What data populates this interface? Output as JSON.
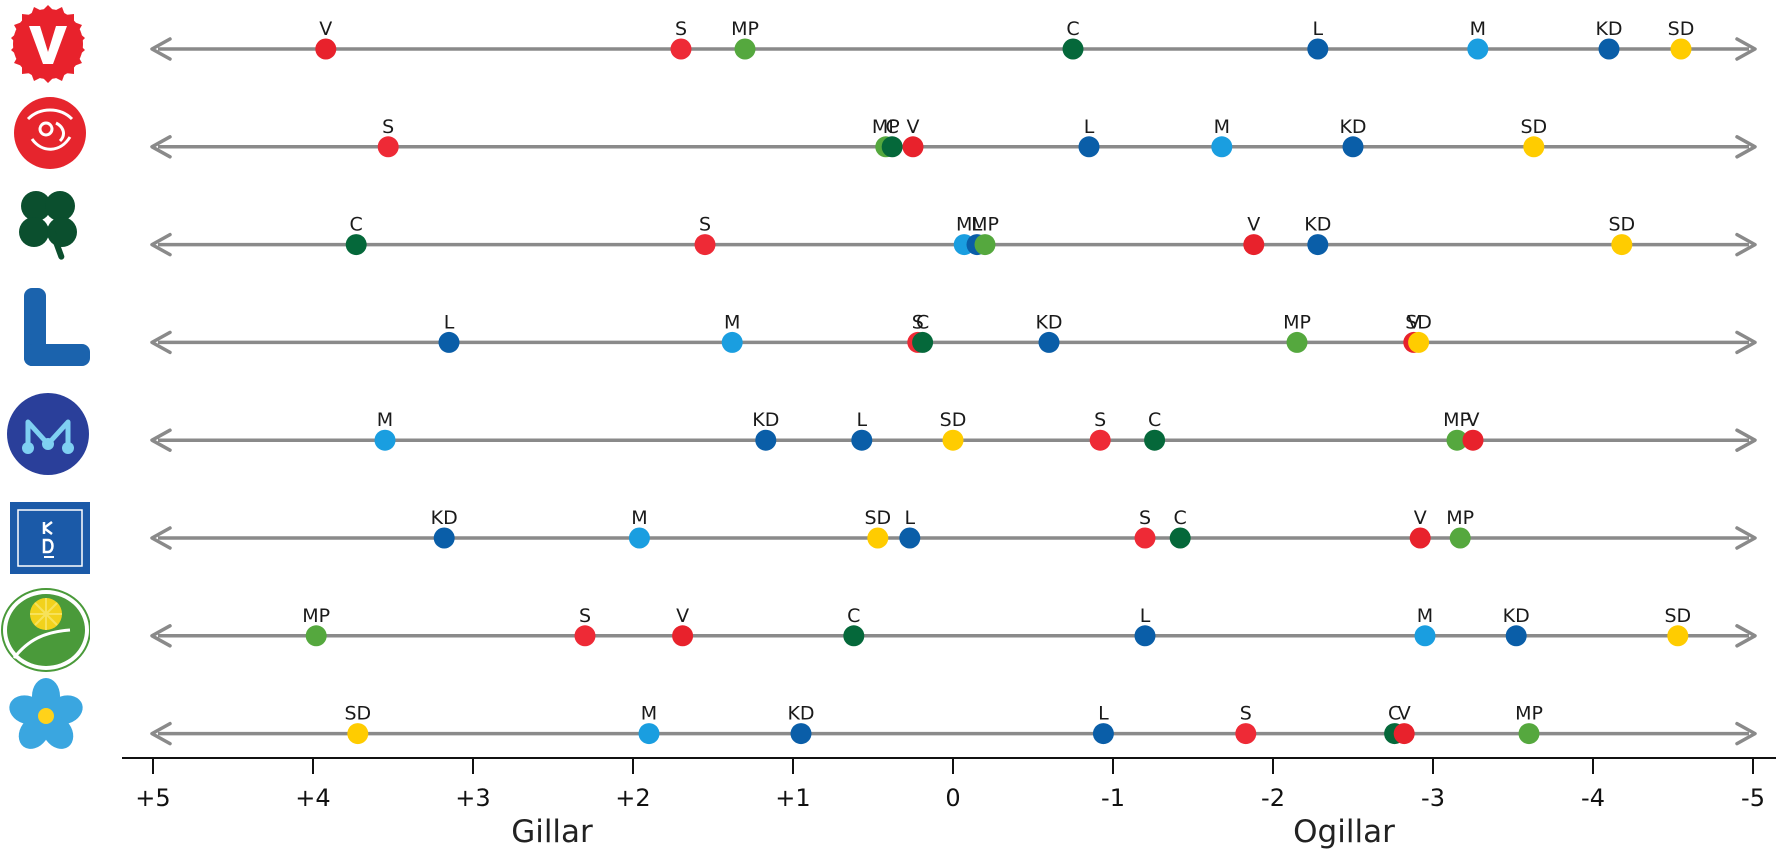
{
  "chart_data": {
    "type": "scatter",
    "description_rows": "Each row shows how one party's voters rate the other parties",
    "x_axis": {
      "reversed": true,
      "xlim": [
        5,
        -5
      ],
      "ticks": [
        5,
        4,
        3,
        2,
        1,
        0,
        -1,
        -2,
        -3,
        -4,
        -5
      ],
      "tick_labels": [
        "+5",
        "+4",
        "+3",
        "+2",
        "+1",
        "0",
        "-1",
        "-2",
        "-3",
        "-4",
        "-5"
      ],
      "left_label": "Gillar",
      "right_label": "Ogillar"
    },
    "grid": false,
    "party_colors": {
      "V": "#e8222c",
      "S": "#ee2a36",
      "MP": "#55a83e",
      "C": "#05683a",
      "L": "#0a5ea8",
      "M": "#1a9ee0",
      "KD": "#0a5ea8",
      "SD": "#ffcc00"
    },
    "rows": [
      {
        "logo": "vansterpartiet-logo",
        "points": [
          {
            "party": "V",
            "x": 3.92
          },
          {
            "party": "S",
            "x": 1.7
          },
          {
            "party": "MP",
            "x": 1.3
          },
          {
            "party": "C",
            "x": -0.75
          },
          {
            "party": "L",
            "x": -2.28
          },
          {
            "party": "M",
            "x": -3.28
          },
          {
            "party": "KD",
            "x": -4.1
          },
          {
            "party": "SD",
            "x": -4.55
          }
        ]
      },
      {
        "logo": "socialdemokraterna-logo",
        "points": [
          {
            "party": "S",
            "x": 3.53
          },
          {
            "party": "MP",
            "x": 0.42
          },
          {
            "party": "C",
            "x": 0.38
          },
          {
            "party": "V",
            "x": 0.25
          },
          {
            "party": "L",
            "x": -0.85
          },
          {
            "party": "M",
            "x": -1.68
          },
          {
            "party": "KD",
            "x": -2.5
          },
          {
            "party": "SD",
            "x": -3.63
          }
        ]
      },
      {
        "logo": "centerpartiet-logo",
        "points": [
          {
            "party": "C",
            "x": 3.73
          },
          {
            "party": "S",
            "x": 1.55
          },
          {
            "party": "M",
            "x": -0.07
          },
          {
            "party": "L",
            "x": -0.15
          },
          {
            "party": "MP",
            "x": -0.2
          },
          {
            "party": "V",
            "x": -1.88
          },
          {
            "party": "KD",
            "x": -2.28
          },
          {
            "party": "SD",
            "x": -4.18
          }
        ]
      },
      {
        "logo": "liberalerna-logo",
        "points": [
          {
            "party": "L",
            "x": 3.15
          },
          {
            "party": "M",
            "x": 1.38
          },
          {
            "party": "S",
            "x": 0.22
          },
          {
            "party": "C",
            "x": 0.19
          },
          {
            "party": "KD",
            "x": -0.6
          },
          {
            "party": "MP",
            "x": -2.15
          },
          {
            "party": "V",
            "x": -2.88
          },
          {
            "party": "SD",
            "x": -2.91
          }
        ]
      },
      {
        "logo": "moderaterna-logo",
        "points": [
          {
            "party": "M",
            "x": 3.55
          },
          {
            "party": "KD",
            "x": 1.17
          },
          {
            "party": "L",
            "x": 0.57
          },
          {
            "party": "SD",
            "x": 0.0
          },
          {
            "party": "S",
            "x": -0.92
          },
          {
            "party": "C",
            "x": -1.26
          },
          {
            "party": "MP",
            "x": -3.15
          },
          {
            "party": "V",
            "x": -3.25
          }
        ]
      },
      {
        "logo": "kristdemokraterna-logo",
        "points": [
          {
            "party": "KD",
            "x": 3.18
          },
          {
            "party": "M",
            "x": 1.96
          },
          {
            "party": "SD",
            "x": 0.47
          },
          {
            "party": "L",
            "x": 0.27
          },
          {
            "party": "S",
            "x": -1.2
          },
          {
            "party": "C",
            "x": -1.42
          },
          {
            "party": "V",
            "x": -2.92
          },
          {
            "party": "MP",
            "x": -3.17
          }
        ]
      },
      {
        "logo": "miljopartiet-logo",
        "points": [
          {
            "party": "MP",
            "x": 3.98
          },
          {
            "party": "S",
            "x": 2.3
          },
          {
            "party": "V",
            "x": 1.69
          },
          {
            "party": "C",
            "x": 0.62
          },
          {
            "party": "L",
            "x": -1.2
          },
          {
            "party": "M",
            "x": -2.95
          },
          {
            "party": "KD",
            "x": -3.52
          },
          {
            "party": "SD",
            "x": -4.53
          }
        ]
      },
      {
        "logo": "sverigedemokraterna-logo",
        "points": [
          {
            "party": "SD",
            "x": 3.72
          },
          {
            "party": "M",
            "x": 1.9
          },
          {
            "party": "KD",
            "x": 0.95
          },
          {
            "party": "L",
            "x": -0.94
          },
          {
            "party": "S",
            "x": -1.83
          },
          {
            "party": "C",
            "x": -2.76
          },
          {
            "party": "V",
            "x": -2.82
          },
          {
            "party": "MP",
            "x": -3.6
          }
        ]
      }
    ]
  }
}
